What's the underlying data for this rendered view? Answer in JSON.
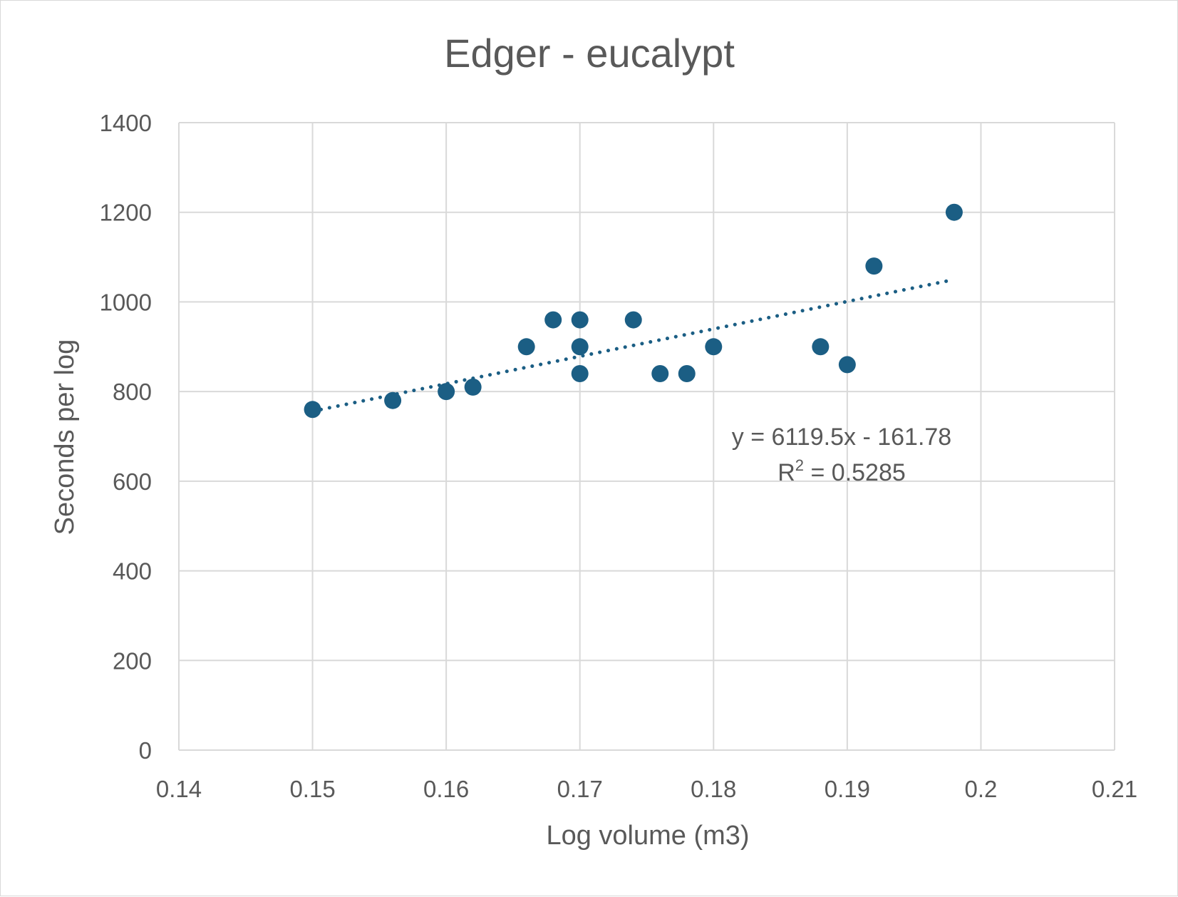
{
  "chart_data": {
    "type": "scatter",
    "title": "Edger - eucalypt",
    "xlabel": "Log volume (m3)",
    "ylabel": "Seconds per log",
    "xlim": [
      0.14,
      0.21
    ],
    "ylim": [
      0,
      1400
    ],
    "x_ticks": [
      "0.14",
      "0.15",
      "0.16",
      "0.17",
      "0.18",
      "0.19",
      "0.2",
      "0.21"
    ],
    "y_ticks": [
      "0",
      "200",
      "400",
      "600",
      "800",
      "1000",
      "1200",
      "1400"
    ],
    "grid": true,
    "legend": "none",
    "marker_color": "#1b5e84",
    "trendline_color": "#1b5e84",
    "points": [
      {
        "x": 0.15,
        "y": 760
      },
      {
        "x": 0.156,
        "y": 780
      },
      {
        "x": 0.16,
        "y": 800
      },
      {
        "x": 0.162,
        "y": 810
      },
      {
        "x": 0.166,
        "y": 900
      },
      {
        "x": 0.168,
        "y": 960
      },
      {
        "x": 0.17,
        "y": 960
      },
      {
        "x": 0.17,
        "y": 900
      },
      {
        "x": 0.17,
        "y": 840
      },
      {
        "x": 0.174,
        "y": 960
      },
      {
        "x": 0.176,
        "y": 840
      },
      {
        "x": 0.178,
        "y": 840
      },
      {
        "x": 0.18,
        "y": 900
      },
      {
        "x": 0.188,
        "y": 900
      },
      {
        "x": 0.19,
        "y": 860
      },
      {
        "x": 0.192,
        "y": 1080
      },
      {
        "x": 0.198,
        "y": 1200
      }
    ],
    "trendline": {
      "type": "linear",
      "slope": 6119.5,
      "intercept": -161.78,
      "x_start": 0.15,
      "x_end": 0.198,
      "style": "dotted"
    },
    "annotation": {
      "equation": "y = 6119.5x - 161.78",
      "r2_prefix": "R",
      "r2_superscript": "2",
      "r2_suffix": " = 0.5285"
    }
  }
}
